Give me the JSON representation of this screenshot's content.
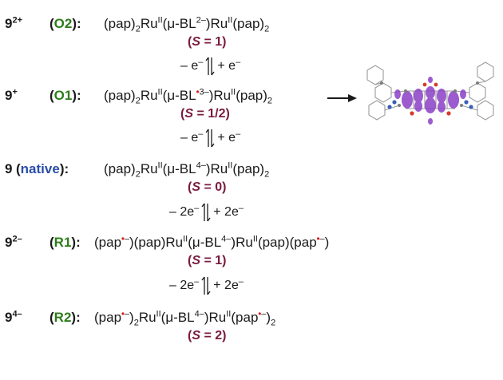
{
  "species": [
    {
      "compound": "9",
      "charge": "2+",
      "label_open": "(",
      "label": "O2",
      "label_close": "):",
      "formula": {
        "a": "(pap)",
        "a_sub": "2",
        "b": "Ru",
        "b_sup": "II",
        "c": "(μ-BL",
        "c_sup": "2–",
        "d": ")Ru",
        "d_sup": "II",
        "e": "(pap)",
        "e_sub": "2"
      },
      "spin": {
        "s": "S",
        "rest": " = 1)"
      }
    },
    {
      "compound": "9",
      "charge": "+",
      "label_open": "(",
      "label": "O1",
      "label_close": "):",
      "formula": {
        "a": "(pap)",
        "a_sub": "2",
        "b": "Ru",
        "b_sup": "II",
        "c": "(μ-BL",
        "c_rad": "•",
        "c_sup": "3–",
        "d": ")Ru",
        "d_sup": "II",
        "e": "(pap)",
        "e_sub": "2"
      },
      "spin": {
        "s": "S",
        "rest": " = 1/2)"
      }
    },
    {
      "compound": "9",
      "charge": "",
      "label_open": "(",
      "label": "native",
      "label_close": "):",
      "formula": {
        "a": "(pap)",
        "a_sub": "2",
        "b": "Ru",
        "b_sup": "II",
        "c": "(μ-BL",
        "c_sup": "4–",
        "d": ")Ru",
        "d_sup": "II",
        "e": "(pap)",
        "e_sub": "2"
      },
      "spin": {
        "s": "S",
        "rest": " = 0)"
      }
    },
    {
      "compound": "9",
      "charge": "2–",
      "label_open": "(",
      "label": "R1",
      "label_close": "):",
      "formula": {
        "a": "(pap",
        "a_rad": "•",
        "a_sup": "–",
        "a2": ")(pap)Ru",
        "b_sup": "II",
        "c": "(μ-BL",
        "c_sup": "4–",
        "d": ")Ru",
        "d_sup": "II",
        "e": "(pap)(pap",
        "e_rad": "•",
        "e_sup": "–",
        "e2": ")"
      },
      "spin": {
        "s": "S",
        "rest": " = 1)"
      }
    },
    {
      "compound": "9",
      "charge": "4–",
      "label_open": "(",
      "label": "R2",
      "label_close": "):",
      "formula": {
        "a": "(pap",
        "a_rad": "•",
        "a_sup": "–",
        "a2": ")",
        "a_sub": "2",
        "a3": "Ru",
        "b_sup": "II",
        "c": "(μ-BL",
        "c_sup": "4–",
        "d": ")Ru",
        "d_sup": "II",
        "e": "(pap",
        "e_rad": "•",
        "e_sup": "–",
        "e2": ")",
        "e_sub": "2"
      },
      "spin": {
        "s": "S",
        "rest": " = 2)"
      }
    }
  ],
  "redox_steps": [
    {
      "left": "– e",
      "left_sup": "–",
      "right": "+ e",
      "right_sup": "–"
    },
    {
      "left": "– e",
      "left_sup": "–",
      "right": "+ e",
      "right_sup": "–"
    },
    {
      "left": "– 2e",
      "left_sup": "–",
      "right": "+ 2e",
      "right_sup": "–"
    },
    {
      "left": "– 2e",
      "left_sup": "–",
      "right": "+ 2e",
      "right_sup": "–"
    }
  ],
  "colors": {
    "label_green": "#2e7d1a",
    "label_blue": "#2b4ea8",
    "spin_maroon": "#7a1a3e",
    "radical_red": "#e0151b",
    "spin_density_purple": "#8b3fc6"
  }
}
